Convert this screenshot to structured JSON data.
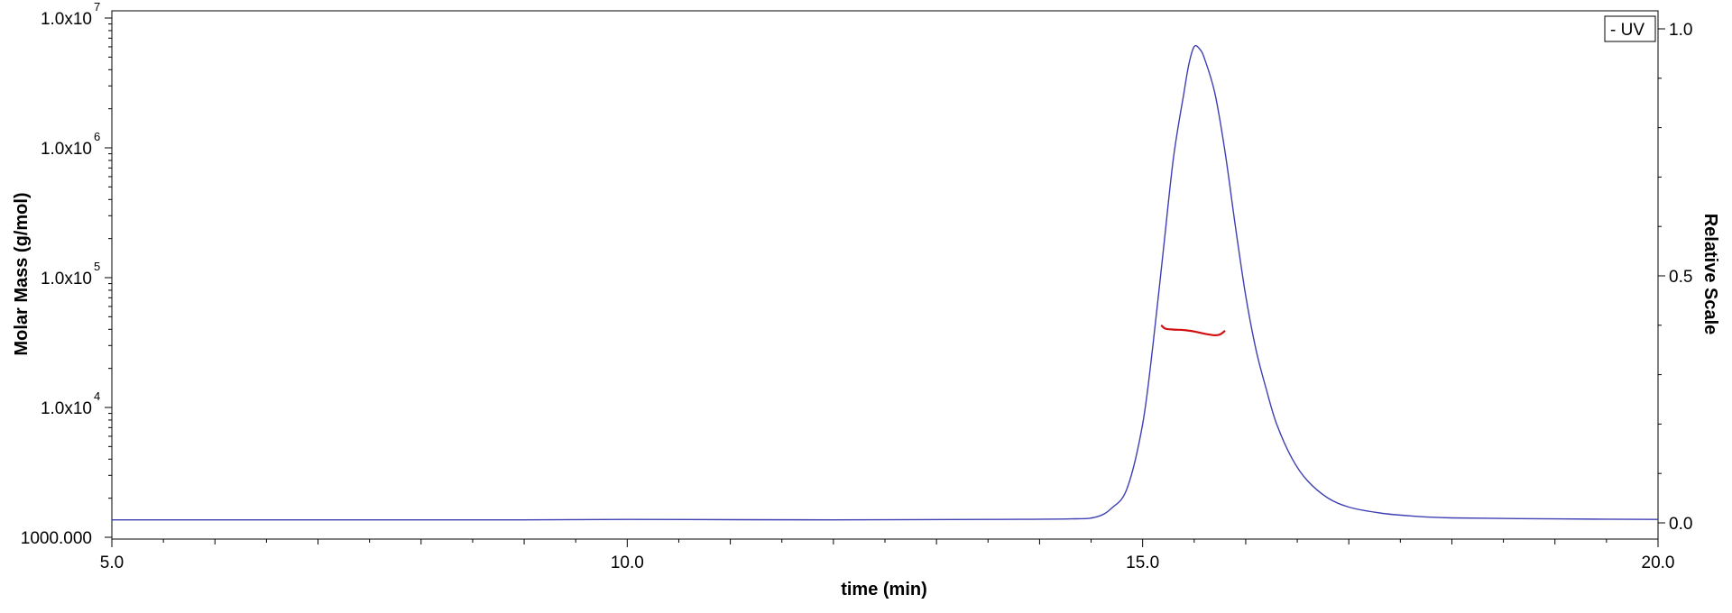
{
  "chart_data": {
    "type": "line",
    "xlabel": "time (min)",
    "ylabel_left": "Molar Mass (g/mol)",
    "ylabel_right": "Relative Scale",
    "xlim": [
      5.0,
      20.0
    ],
    "ylim_left": [
      1000,
      10000000
    ],
    "ylim_right": [
      0,
      1.0
    ],
    "left_scale": "log",
    "grid": false,
    "legend": {
      "position": "top-right",
      "entries": [
        "UV"
      ]
    },
    "x_ticks": [
      {
        "value": 5.0,
        "label": "5.0"
      },
      {
        "value": 10.0,
        "label": "10.0"
      },
      {
        "value": 15.0,
        "label": "15.0"
      },
      {
        "value": 20.0,
        "label": "20.0"
      }
    ],
    "y_left_ticks": [
      {
        "value": 10000000,
        "base": "1.0x10",
        "exp": "7"
      },
      {
        "value": 1000000,
        "base": "1.0x10",
        "exp": "6"
      },
      {
        "value": 100000,
        "base": "1.0x10",
        "exp": "5"
      },
      {
        "value": 10000,
        "base": "1.0x10",
        "exp": "4"
      },
      {
        "value": 1000,
        "base": "1000.000",
        "exp": ""
      }
    ],
    "y_right_ticks": [
      {
        "value": 0.0,
        "label": "0.0"
      },
      {
        "value": 0.5,
        "label": "0.5"
      },
      {
        "value": 1.0,
        "label": "1.0"
      }
    ],
    "series": [
      {
        "name": "UV",
        "axis": "right",
        "color": "#3f3fb4",
        "x": [
          5.0,
          7.0,
          9.0,
          10.0,
          12.0,
          13.5,
          14.3,
          14.55,
          14.7,
          14.85,
          15.0,
          15.1,
          15.2,
          15.3,
          15.4,
          15.45,
          15.5,
          15.55,
          15.6,
          15.7,
          15.8,
          15.9,
          16.0,
          16.1,
          16.2,
          16.3,
          16.45,
          16.6,
          16.8,
          17.0,
          17.3,
          17.6,
          18.0,
          19.0,
          20.0
        ],
        "y": [
          0.006,
          0.006,
          0.006,
          0.007,
          0.006,
          0.007,
          0.008,
          0.012,
          0.03,
          0.07,
          0.2,
          0.36,
          0.55,
          0.74,
          0.87,
          0.93,
          0.964,
          0.96,
          0.94,
          0.87,
          0.75,
          0.6,
          0.46,
          0.35,
          0.27,
          0.2,
          0.13,
          0.085,
          0.05,
          0.032,
          0.02,
          0.014,
          0.01,
          0.008,
          0.007
        ]
      },
      {
        "name": "Molar Mass",
        "axis": "left",
        "color": "#d01010",
        "x": [
          15.18,
          15.22,
          15.3,
          15.4,
          15.5,
          15.6,
          15.7,
          15.75,
          15.8
        ],
        "y": [
          43000,
          40500,
          39800,
          39500,
          38500,
          37000,
          36000,
          36500,
          39000
        ]
      }
    ]
  }
}
